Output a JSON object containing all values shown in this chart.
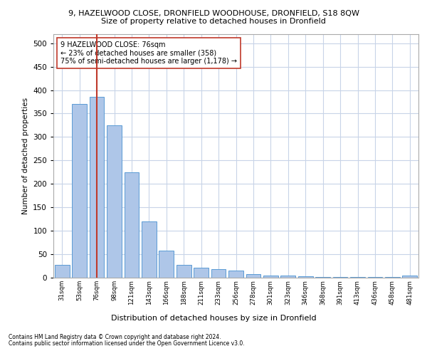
{
  "title_line1": "9, HAZELWOOD CLOSE, DRONFIELD WOODHOUSE, DRONFIELD, S18 8QW",
  "title_line2": "Size of property relative to detached houses in Dronfield",
  "xlabel": "Distribution of detached houses by size in Dronfield",
  "ylabel": "Number of detached properties",
  "categories": [
    "31sqm",
    "53sqm",
    "76sqm",
    "98sqm",
    "121sqm",
    "143sqm",
    "166sqm",
    "188sqm",
    "211sqm",
    "233sqm",
    "256sqm",
    "278sqm",
    "301sqm",
    "323sqm",
    "346sqm",
    "368sqm",
    "391sqm",
    "413sqm",
    "436sqm",
    "458sqm",
    "481sqm"
  ],
  "values": [
    28,
    370,
    385,
    325,
    225,
    120,
    58,
    28,
    22,
    18,
    15,
    8,
    5,
    5,
    3,
    2,
    2,
    2,
    1,
    1,
    5
  ],
  "bar_color": "#aec6e8",
  "bar_edge_color": "#5b9bd5",
  "highlight_index": 2,
  "highlight_line_color": "#c0392b",
  "annotation_line1": "9 HAZELWOOD CLOSE: 76sqm",
  "annotation_line2": "← 23% of detached houses are smaller (358)",
  "annotation_line3": "75% of semi-detached houses are larger (1,178) →",
  "annotation_box_color": "#ffffff",
  "annotation_box_edge": "#c0392b",
  "ylim": [
    0,
    520
  ],
  "yticks": [
    0,
    50,
    100,
    150,
    200,
    250,
    300,
    350,
    400,
    450,
    500
  ],
  "footer_line1": "Contains HM Land Registry data © Crown copyright and database right 2024.",
  "footer_line2": "Contains public sector information licensed under the Open Government Licence v3.0.",
  "background_color": "#ffffff",
  "grid_color": "#c8d4e8"
}
